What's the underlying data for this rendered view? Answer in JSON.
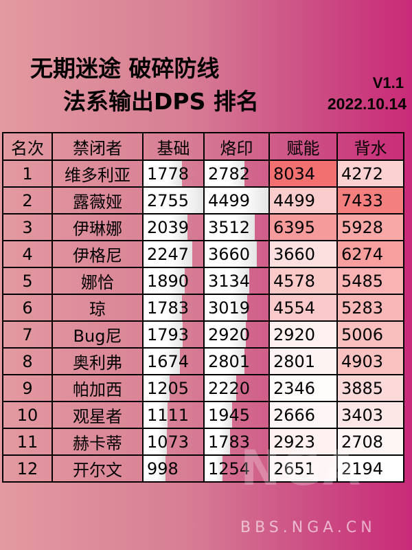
{
  "title_line1": "无期迷途 破碎防线",
  "title_line2": "法系输出DPS 排名",
  "version": "V1.1",
  "date": "2022.10.14",
  "watermark": "NGA",
  "watermark_site": "BBS.NGA.CN",
  "colors": {
    "heat_max": "#f2706f",
    "heat_min": "#ffffff"
  },
  "chart_data": {
    "type": "table",
    "headers": [
      "名次",
      "禁闭者",
      "基础",
      "烙印",
      "赋能",
      "背水"
    ],
    "rows": [
      [
        "1",
        "维多利亚",
        1778,
        2782,
        8034,
        4272
      ],
      [
        "2",
        "露薇娅",
        2755,
        4499,
        4499,
        7433
      ],
      [
        "3",
        "伊琳娜",
        2039,
        3512,
        6395,
        5928
      ],
      [
        "4",
        "伊格尼",
        2247,
        3660,
        3660,
        6274
      ],
      [
        "5",
        "娜恰",
        1890,
        3134,
        4578,
        5485
      ],
      [
        "6",
        "琼",
        1783,
        3019,
        4554,
        5283
      ],
      [
        "7",
        "Bug尼",
        1793,
        2920,
        2920,
        5006
      ],
      [
        "8",
        "奥利弗",
        1674,
        2801,
        2801,
        4903
      ],
      [
        "9",
        "帕加西",
        1205,
        2220,
        2346,
        3885
      ],
      [
        "10",
        "观星者",
        1111,
        1945,
        2666,
        3403
      ],
      [
        "11",
        "赫卡蒂",
        1073,
        1783,
        2923,
        2708
      ],
      [
        "12",
        "开尔文",
        998,
        1254,
        2651,
        2194
      ]
    ]
  }
}
